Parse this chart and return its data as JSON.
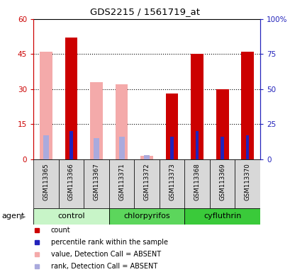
{
  "title": "GDS2215 / 1561719_at",
  "samples": [
    "GSM113365",
    "GSM113366",
    "GSM113367",
    "GSM113371",
    "GSM113372",
    "GSM113373",
    "GSM113368",
    "GSM113369",
    "GSM113370"
  ],
  "bar_data": [
    {
      "sample": "GSM113365",
      "absent": true,
      "value": 46,
      "rank": 17,
      "red_count": null,
      "blue_rank": null
    },
    {
      "sample": "GSM113366",
      "absent": false,
      "value": null,
      "rank": null,
      "red_count": 52,
      "blue_rank": 20
    },
    {
      "sample": "GSM113367",
      "absent": true,
      "value": 33,
      "rank": 15,
      "red_count": null,
      "blue_rank": null
    },
    {
      "sample": "GSM113371",
      "absent": true,
      "value": 32,
      "rank": 16,
      "red_count": null,
      "blue_rank": null
    },
    {
      "sample": "GSM113372",
      "absent": true,
      "value": 1.5,
      "rank": 3,
      "red_count": null,
      "blue_rank": null
    },
    {
      "sample": "GSM113373",
      "absent": false,
      "value": null,
      "rank": null,
      "red_count": 28,
      "blue_rank": 16
    },
    {
      "sample": "GSM113368",
      "absent": false,
      "value": null,
      "rank": null,
      "red_count": 45,
      "blue_rank": 20
    },
    {
      "sample": "GSM113369",
      "absent": false,
      "value": null,
      "rank": null,
      "red_count": 30,
      "blue_rank": 16
    },
    {
      "sample": "GSM113370",
      "absent": false,
      "value": null,
      "rank": null,
      "red_count": 46,
      "blue_rank": 17
    }
  ],
  "groups": [
    {
      "name": "control",
      "start": 0,
      "end": 2,
      "color": "#C8F5C8"
    },
    {
      "name": "chlorpyrifos",
      "start": 3,
      "end": 5,
      "color": "#5CD65C"
    },
    {
      "name": "cyfluthrin",
      "start": 6,
      "end": 8,
      "color": "#3ACA3A"
    }
  ],
  "ylim_left": [
    0,
    60
  ],
  "ylim_right": [
    0,
    100
  ],
  "yticks_left": [
    0,
    15,
    30,
    45,
    60
  ],
  "yticks_right": [
    0,
    25,
    50,
    75,
    100
  ],
  "ytick_labels_right": [
    "0",
    "25",
    "50",
    "75",
    "100%"
  ],
  "color_red": "#CC0000",
  "color_blue": "#2222BB",
  "color_pink": "#F4AAAA",
  "color_lavender": "#AAAADD",
  "bg_plot": "#FFFFFF",
  "bg_cell": "#D8D8D8",
  "bar_width": 0.5
}
